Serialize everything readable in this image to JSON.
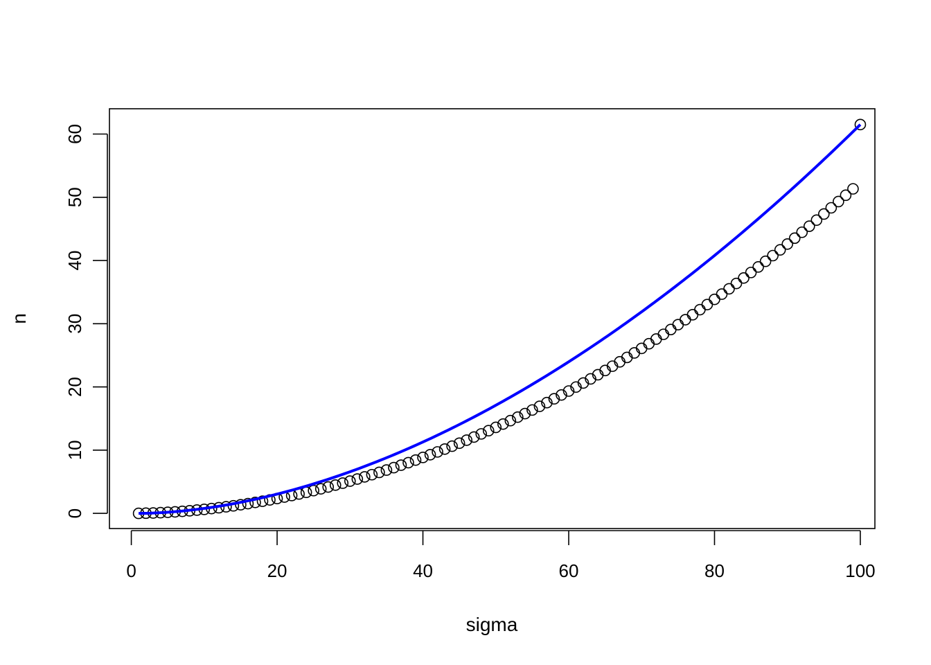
{
  "chart_data": {
    "type": "scatter",
    "title": "",
    "xlabel": "sigma",
    "ylabel": "n",
    "xlim": [
      -3.0,
      102.0
    ],
    "ylim": [
      -2.4,
      64.0
    ],
    "xticks": [
      0,
      20,
      40,
      60,
      80,
      100
    ],
    "yticks": [
      0,
      10,
      20,
      30,
      40,
      50,
      60
    ],
    "xtick_labels": [
      "0",
      "20",
      "40",
      "60",
      "80",
      "100"
    ],
    "ytick_labels": [
      "0",
      "10",
      "20",
      "30",
      "40",
      "50",
      "60"
    ],
    "grid": false,
    "legend": "none",
    "points": {
      "x_start": 1,
      "x_end": 100,
      "x_step": 1,
      "y": [
        0.0,
        0.03,
        0.06,
        0.11,
        0.17,
        0.24,
        0.32,
        0.41,
        0.52,
        0.63,
        0.76,
        0.89,
        1.04,
        1.19,
        1.36,
        1.54,
        1.73,
        1.92,
        2.13,
        2.35,
        2.58,
        2.82,
        3.07,
        3.33,
        3.6,
        3.88,
        4.17,
        4.47,
        4.78,
        5.1,
        5.43,
        5.77,
        6.12,
        6.48,
        6.85,
        7.23,
        7.62,
        8.02,
        8.43,
        8.85,
        9.28,
        9.72,
        10.17,
        10.63,
        11.1,
        11.58,
        12.07,
        12.57,
        13.08,
        13.6,
        14.13,
        14.67,
        15.22,
        15.78,
        16.35,
        16.93,
        17.52,
        18.12,
        18.73,
        19.35,
        19.98,
        20.62,
        21.27,
        21.93,
        22.6,
        23.28,
        23.97,
        24.67,
        25.38,
        26.1,
        26.83,
        27.57,
        28.32,
        29.08,
        29.85,
        30.63,
        31.42,
        32.22,
        33.03,
        33.85,
        34.68,
        35.52,
        36.37,
        37.23,
        38.1,
        38.98,
        39.87,
        40.77,
        41.68,
        42.6,
        43.53,
        44.47,
        45.42,
        46.38,
        47.35,
        48.33,
        49.32,
        50.32,
        51.33,
        61.5
      ],
      "marker": "open-circle",
      "color": "#000000"
    },
    "fit_line": {
      "color": "#0000ff",
      "exponent": 1.82
    }
  }
}
